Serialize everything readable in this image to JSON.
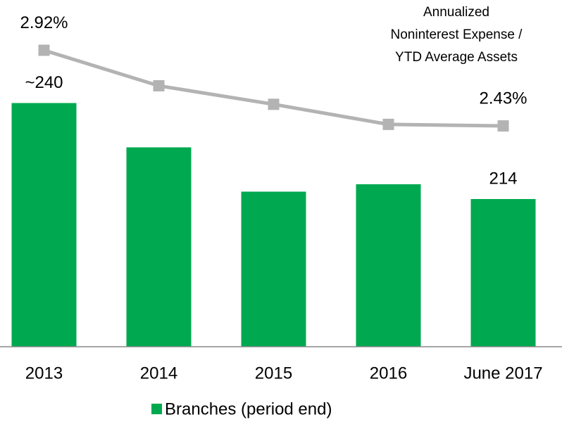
{
  "chart_data": {
    "type": "bar",
    "categories": [
      "2013",
      "2014",
      "2015",
      "2016",
      "June 2017"
    ],
    "series": [
      {
        "name": "Branches (period end)",
        "type": "bar",
        "color": "#00a94f",
        "values": [
          240,
          228,
          216,
          218,
          214
        ],
        "value_labels": [
          "~240",
          null,
          null,
          null,
          "214"
        ]
      },
      {
        "type": "line",
        "axis": "y2",
        "color": "#b3b3b3",
        "values": [
          2.92,
          2.69,
          2.57,
          2.44,
          2.43
        ],
        "value_labels": [
          "2.92%",
          null,
          null,
          null,
          "2.43%"
        ]
      }
    ],
    "ylim": [
      174,
      266
    ],
    "y2lim": [
      1.0,
      3.2
    ],
    "annotation": [
      "Annualized",
      "Noninterest Expense /",
      "YTD Average Assets"
    ],
    "legend": "bottom"
  }
}
